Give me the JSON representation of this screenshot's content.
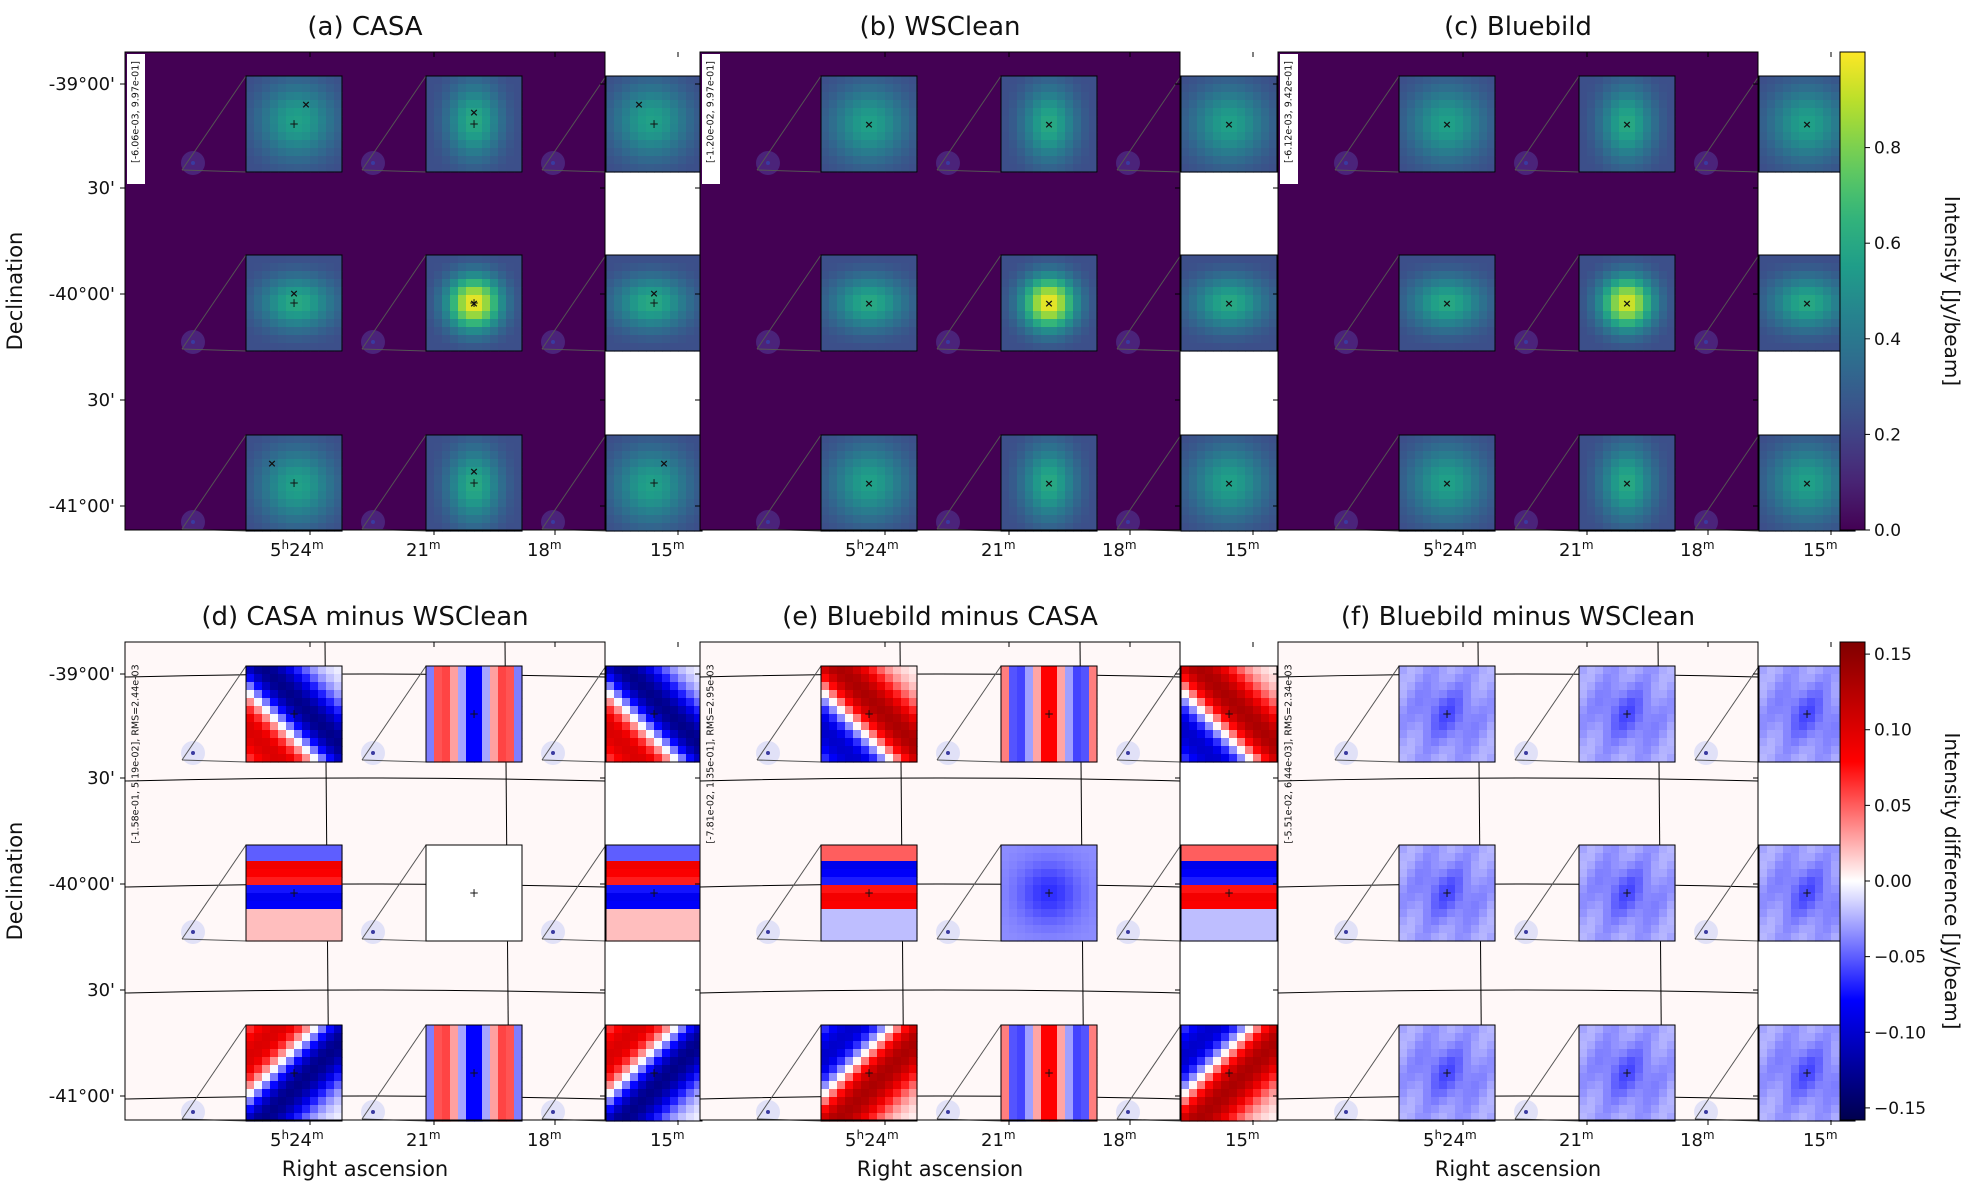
{
  "chart_data": {
    "type": "heatmap",
    "figure_axis": {
      "ylabel": "Declination",
      "xlabel": "Right ascension",
      "ra_ticks": [
        {
          "h": "5",
          "hs": "h",
          "m": "24",
          "ms": "m"
        },
        {
          "h": "",
          "hs": "",
          "m": "21",
          "ms": "m"
        },
        {
          "h": "",
          "hs": "",
          "m": "18",
          "ms": "m"
        },
        {
          "h": "",
          "hs": "",
          "m": "15",
          "ms": "m"
        }
      ],
      "dec_ticks": [
        "-39°00'",
        "30'",
        "-40°00'",
        "30'",
        "-41°00'"
      ]
    },
    "colorbars": [
      {
        "label": "Intensity [Jy/beam]",
        "ticks": [
          "0.0",
          "0.2",
          "0.4",
          "0.6",
          "0.8"
        ],
        "values": [
          0.0,
          0.2,
          0.4,
          0.6,
          0.8
        ],
        "range": [
          0.0,
          1.0
        ],
        "colormap": "viridis"
      },
      {
        "label": "Intensity difference [Jy/beam]",
        "ticks": [
          "0.15",
          "0.10",
          "0.05",
          "0.00",
          "−0.05",
          "−0.10",
          "−0.15"
        ],
        "values": [
          0.15,
          0.1,
          0.05,
          0.0,
          -0.05,
          -0.1,
          -0.15
        ],
        "range": [
          -0.158,
          0.158
        ],
        "colormap": "seismic"
      }
    ],
    "panels": [
      {
        "title": "(a) CASA",
        "range_label": "[-6.06e-03, 9.97e-01]",
        "kind": "image"
      },
      {
        "title": "(b) WSClean",
        "range_label": "[-1.20e-02, 9.97e-01]",
        "kind": "image"
      },
      {
        "title": "(c) Bluebild",
        "range_label": "[-6.12e-03, 9.42e-01]",
        "kind": "image"
      },
      {
        "title": "(d) CASA minus WSClean",
        "range_label": "[-1.58e-01, 5.19e-02], RMS=2.44e-03",
        "kind": "diff"
      },
      {
        "title": "(e) Bluebild minus CASA",
        "range_label": "[-7.81e-02, 1.35e-01], RMS=2.95e-03",
        "kind": "diff"
      },
      {
        "title": "(f) Bluebild minus WSClean",
        "range_label": "[-5.51e-02, 6.44e-03], RMS=2.34e-03",
        "kind": "diff"
      }
    ]
  },
  "colors": {
    "background_dark": "#440154",
    "marker_cross": "#000000",
    "marker_plus": "#ff00ff",
    "grid_line": "#000000"
  }
}
